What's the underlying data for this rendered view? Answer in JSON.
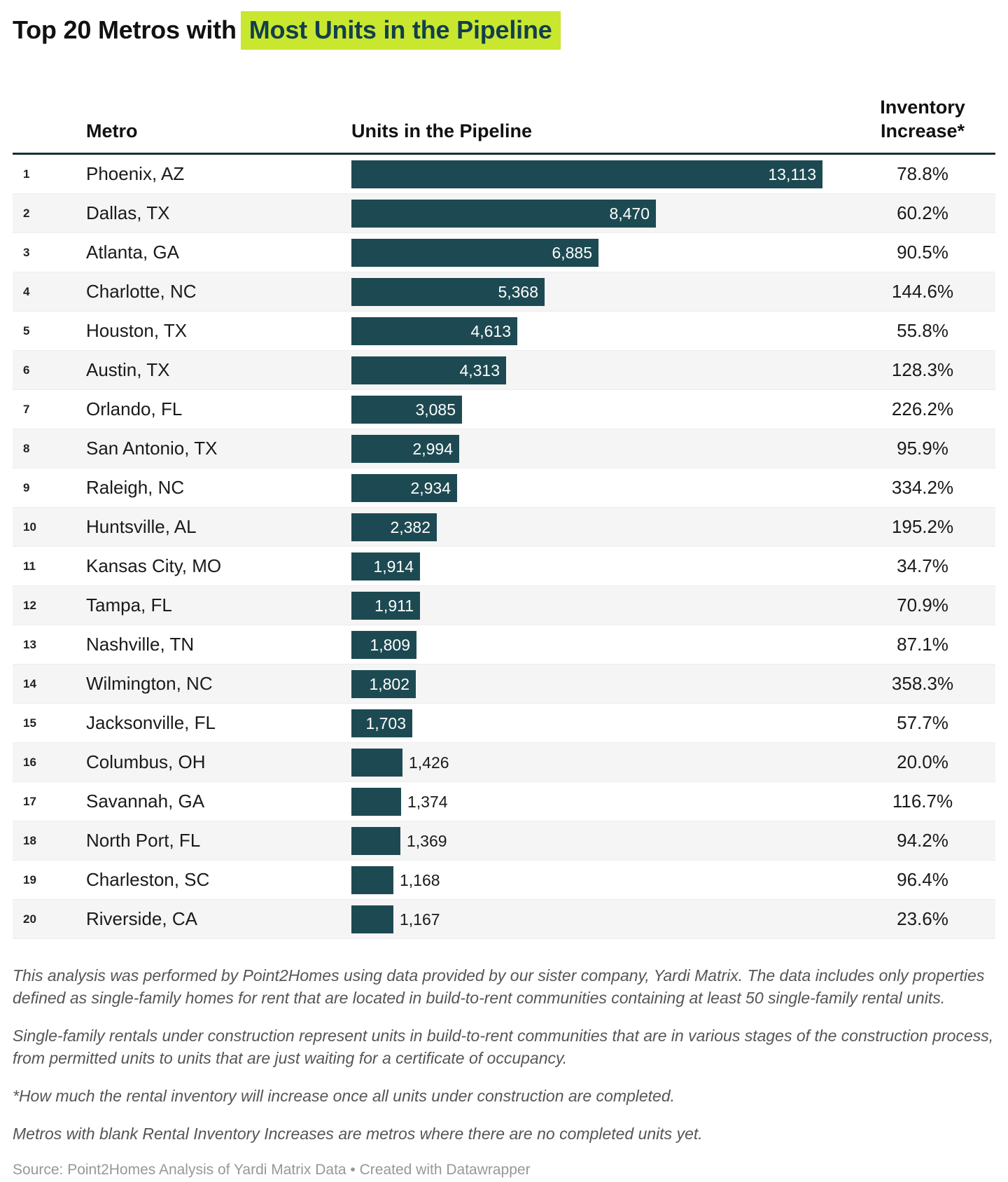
{
  "title": {
    "prefix": "Top 20 Metros with",
    "highlight": "Most Units in the Pipeline"
  },
  "colors": {
    "bar": "#1d4a52",
    "title_highlight_bg": "#c9e72f",
    "title_highlight_text": "#123f4c",
    "stripe": "#f5f5f5",
    "header_rule": "#1b2d36"
  },
  "table": {
    "columns": {
      "metro": "Metro",
      "units": "Units in the Pipeline",
      "inventory_line1": "Inventory",
      "inventory_line2": "Increase*"
    },
    "rows": [
      {
        "rank": "1",
        "metro": "Phoenix, AZ",
        "units": 13113,
        "units_label": "13,113",
        "inventory": "78.8%"
      },
      {
        "rank": "2",
        "metro": "Dallas, TX",
        "units": 8470,
        "units_label": "8,470",
        "inventory": "60.2%"
      },
      {
        "rank": "3",
        "metro": "Atlanta, GA",
        "units": 6885,
        "units_label": "6,885",
        "inventory": "90.5%"
      },
      {
        "rank": "4",
        "metro": "Charlotte, NC",
        "units": 5368,
        "units_label": "5,368",
        "inventory": "144.6%"
      },
      {
        "rank": "5",
        "metro": "Houston, TX",
        "units": 4613,
        "units_label": "4,613",
        "inventory": "55.8%"
      },
      {
        "rank": "6",
        "metro": "Austin, TX",
        "units": 4313,
        "units_label": "4,313",
        "inventory": "128.3%"
      },
      {
        "rank": "7",
        "metro": "Orlando, FL",
        "units": 3085,
        "units_label": "3,085",
        "inventory": "226.2%"
      },
      {
        "rank": "8",
        "metro": "San Antonio, TX",
        "units": 2994,
        "units_label": "2,994",
        "inventory": "95.9%"
      },
      {
        "rank": "9",
        "metro": "Raleigh, NC",
        "units": 2934,
        "units_label": "2,934",
        "inventory": "334.2%"
      },
      {
        "rank": "10",
        "metro": "Huntsville, AL",
        "units": 2382,
        "units_label": "2,382",
        "inventory": "195.2%"
      },
      {
        "rank": "11",
        "metro": "Kansas City, MO",
        "units": 1914,
        "units_label": "1,914",
        "inventory": "34.7%"
      },
      {
        "rank": "12",
        "metro": "Tampa, FL",
        "units": 1911,
        "units_label": "1,911",
        "inventory": "70.9%"
      },
      {
        "rank": "13",
        "metro": "Nashville, TN",
        "units": 1809,
        "units_label": "1,809",
        "inventory": "87.1%"
      },
      {
        "rank": "14",
        "metro": "Wilmington, NC",
        "units": 1802,
        "units_label": "1,802",
        "inventory": "358.3%"
      },
      {
        "rank": "15",
        "metro": "Jacksonville, FL",
        "units": 1703,
        "units_label": "1,703",
        "inventory": "57.7%"
      },
      {
        "rank": "16",
        "metro": "Columbus, OH",
        "units": 1426,
        "units_label": "1,426",
        "inventory": "20.0%"
      },
      {
        "rank": "17",
        "metro": "Savannah, GA",
        "units": 1374,
        "units_label": "1,374",
        "inventory": "116.7%"
      },
      {
        "rank": "18",
        "metro": "North Port, FL",
        "units": 1369,
        "units_label": "1,369",
        "inventory": "94.2%"
      },
      {
        "rank": "19",
        "metro": "Charleston, SC",
        "units": 1168,
        "units_label": "1,168",
        "inventory": "96.4%"
      },
      {
        "rank": "20",
        "metro": "Riverside, CA",
        "units": 1167,
        "units_label": "1,167",
        "inventory": "23.6%"
      }
    ]
  },
  "chart_data": {
    "type": "bar",
    "orientation": "horizontal",
    "title": "Top 20 Metros with Most Units in the Pipeline",
    "categories": [
      "Phoenix, AZ",
      "Dallas, TX",
      "Atlanta, GA",
      "Charlotte, NC",
      "Houston, TX",
      "Austin, TX",
      "Orlando, FL",
      "San Antonio, TX",
      "Raleigh, NC",
      "Huntsville, AL",
      "Kansas City, MO",
      "Tampa, FL",
      "Nashville, TN",
      "Wilmington, NC",
      "Jacksonville, FL",
      "Columbus, OH",
      "Savannah, GA",
      "North Port, FL",
      "Charleston, SC",
      "Riverside, CA"
    ],
    "series": [
      {
        "name": "Units in the Pipeline",
        "values": [
          13113,
          8470,
          6885,
          5368,
          4613,
          4313,
          3085,
          2994,
          2934,
          2382,
          1914,
          1911,
          1809,
          1802,
          1703,
          1426,
          1374,
          1369,
          1168,
          1167
        ]
      },
      {
        "name": "Inventory Increase (%)",
        "values": [
          78.8,
          60.2,
          90.5,
          144.6,
          55.8,
          128.3,
          226.2,
          95.9,
          334.2,
          195.2,
          34.7,
          70.9,
          87.1,
          358.3,
          57.7,
          20.0,
          116.7,
          94.2,
          96.4,
          23.6
        ]
      }
    ],
    "xlim": [
      0,
      13113
    ],
    "grid": false,
    "legend_position": "none"
  },
  "footnotes": [
    "This analysis was performed by Point2Homes using data provided by our sister company, Yardi Matrix. The data includes only properties defined as single-family homes for rent that are located in build-to-rent communities containing at least 50 single-family rental units.",
    "Single-family rentals under construction represent units in build-to-rent communities that are in various stages of the construction process, from permitted units to units that are just waiting for a certificate of occupancy.",
    "*How much the rental inventory will increase once all units under construction are completed.",
    "Metros with blank Rental Inventory Increases are metros where there are no completed units yet."
  ],
  "source": "Source: Point2Homes Analysis of Yardi Matrix Data • Created with Datawrapper"
}
